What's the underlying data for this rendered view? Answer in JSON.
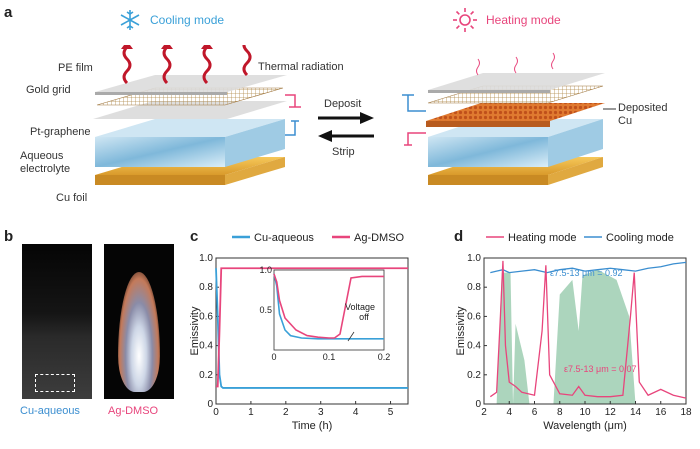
{
  "panel_a": {
    "letter": "a",
    "cooling_mode": "Cooling mode",
    "heating_mode": "Heating mode",
    "layers": [
      "PE film",
      "Gold grid",
      "Pt-graphene",
      "Aqueous electrolyte",
      "Cu foil"
    ],
    "thermal_radiation": "Thermal radiation",
    "deposit": "Deposit",
    "strip": "Strip",
    "deposited_cu": "Deposited Cu"
  },
  "panel_b": {
    "letter": "b",
    "left_caption": "Cu-aqueous",
    "right_caption": "Ag-DMSO",
    "left_color": "#3b8ed0",
    "right_color": "#e8457c"
  },
  "panel_c": {
    "letter": "c",
    "xlabel": "Time (h)",
    "ylabel": "Emissivity",
    "legend": [
      "Cu-aqueous",
      "Ag-DMSO"
    ],
    "colors": [
      "#3aa0d8",
      "#e8457c"
    ],
    "xticks": [
      "0",
      "1",
      "2",
      "3",
      "4",
      "5"
    ],
    "yticks": [
      "0",
      "0.2",
      "0.4",
      "0.6",
      "0.8",
      "1.0"
    ],
    "inset_xticks": [
      "0",
      "0.1",
      "0.2"
    ],
    "inset_yticks": [
      "0.5",
      "1.0"
    ],
    "inset_annotation": "Voltage off"
  },
  "panel_d": {
    "letter": "d",
    "xlabel": "Wavelength (μm)",
    "ylabel": "Emissivity",
    "legend": [
      "Heating mode",
      "Cooling mode"
    ],
    "colors": [
      "#e8457c",
      "#3b8ed0"
    ],
    "fill_color": "#7fbf9a",
    "xticks": [
      "2",
      "4",
      "6",
      "8",
      "10",
      "12",
      "14",
      "16",
      "18"
    ],
    "yticks": [
      "0",
      "0.2",
      "0.4",
      "0.6",
      "0.8",
      "1.0"
    ],
    "cooling_annotation": "ε7.5-13 μm = 0.92",
    "heating_annotation": "ε7.5-13 μm = 0.07"
  },
  "chart_data": [
    {
      "type": "line",
      "xlabel": "Time (h)",
      "ylabel": "Emissivity",
      "xlim": [
        0,
        5.5
      ],
      "ylim": [
        0,
        1.0
      ],
      "series": [
        {
          "name": "Cu-aqueous",
          "x": [
            0,
            0.05,
            0.1,
            0.15,
            0.2,
            0.5,
            1,
            2,
            3,
            4,
            5,
            5.5
          ],
          "values": [
            0.93,
            0.6,
            0.2,
            0.12,
            0.11,
            0.11,
            0.11,
            0.11,
            0.11,
            0.11,
            0.11,
            0.11
          ]
        },
        {
          "name": "Ag-DMSO",
          "x": [
            0,
            0.05,
            0.1,
            0.15,
            0.2,
            0.5,
            1,
            2,
            3,
            4,
            5,
            5.5
          ],
          "values": [
            0.12,
            0.12,
            0.5,
            0.93,
            0.93,
            0.93,
            0.93,
            0.93,
            0.93,
            0.93,
            0.93,
            0.93
          ]
        }
      ],
      "inset": {
        "xlim": [
          0,
          0.2
        ],
        "ylim": [
          0,
          1.0
        ],
        "series": [
          {
            "name": "Cu-aqueous",
            "x": [
              0,
              0.005,
              0.01,
              0.02,
              0.03,
              0.05,
              0.08,
              0.1,
              0.12,
              0.15,
              0.2
            ],
            "values": [
              0.95,
              0.8,
              0.45,
              0.25,
              0.18,
              0.15,
              0.14,
              0.14,
              0.14,
              0.14,
              0.14
            ]
          },
          {
            "name": "Ag-DMSO",
            "x": [
              0,
              0.005,
              0.01,
              0.02,
              0.04,
              0.06,
              0.08,
              0.1,
              0.11,
              0.12,
              0.13,
              0.14,
              0.16,
              0.2
            ],
            "values": [
              0.95,
              0.85,
              0.62,
              0.4,
              0.25,
              0.18,
              0.16,
              0.15,
              0.15,
              0.2,
              0.55,
              0.9,
              0.92,
              0.92
            ]
          }
        ]
      }
    },
    {
      "type": "line",
      "xlabel": "Wavelength (μm)",
      "ylabel": "Emissivity",
      "xlim": [
        2,
        18
      ],
      "ylim": [
        0,
        1.0
      ],
      "series": [
        {
          "name": "Cooling mode",
          "x": [
            2.5,
            3,
            3.5,
            4,
            5,
            6,
            7,
            8,
            9,
            10,
            11,
            12,
            13,
            14,
            15,
            16,
            17,
            18
          ],
          "values": [
            0.9,
            0.91,
            0.92,
            0.9,
            0.91,
            0.92,
            0.9,
            0.92,
            0.93,
            0.91,
            0.92,
            0.93,
            0.92,
            0.91,
            0.93,
            0.94,
            0.96,
            0.97
          ]
        },
        {
          "name": "Heating mode",
          "x": [
            2.5,
            3,
            3.3,
            3.5,
            3.7,
            4,
            4.5,
            5,
            6,
            6.6,
            6.9,
            7.2,
            8,
            9,
            9.5,
            10,
            11,
            12,
            13,
            13.6,
            13.9,
            14.3,
            15,
            16,
            17,
            18
          ],
          "values": [
            0.05,
            0.08,
            0.6,
            0.98,
            0.4,
            0.15,
            0.12,
            0.08,
            0.06,
            0.5,
            0.95,
            0.2,
            0.07,
            0.06,
            0.12,
            0.06,
            0.05,
            0.05,
            0.06,
            0.6,
            0.9,
            0.15,
            0.06,
            0.1,
            0.06,
            0.04
          ]
        }
      ]
    }
  ]
}
